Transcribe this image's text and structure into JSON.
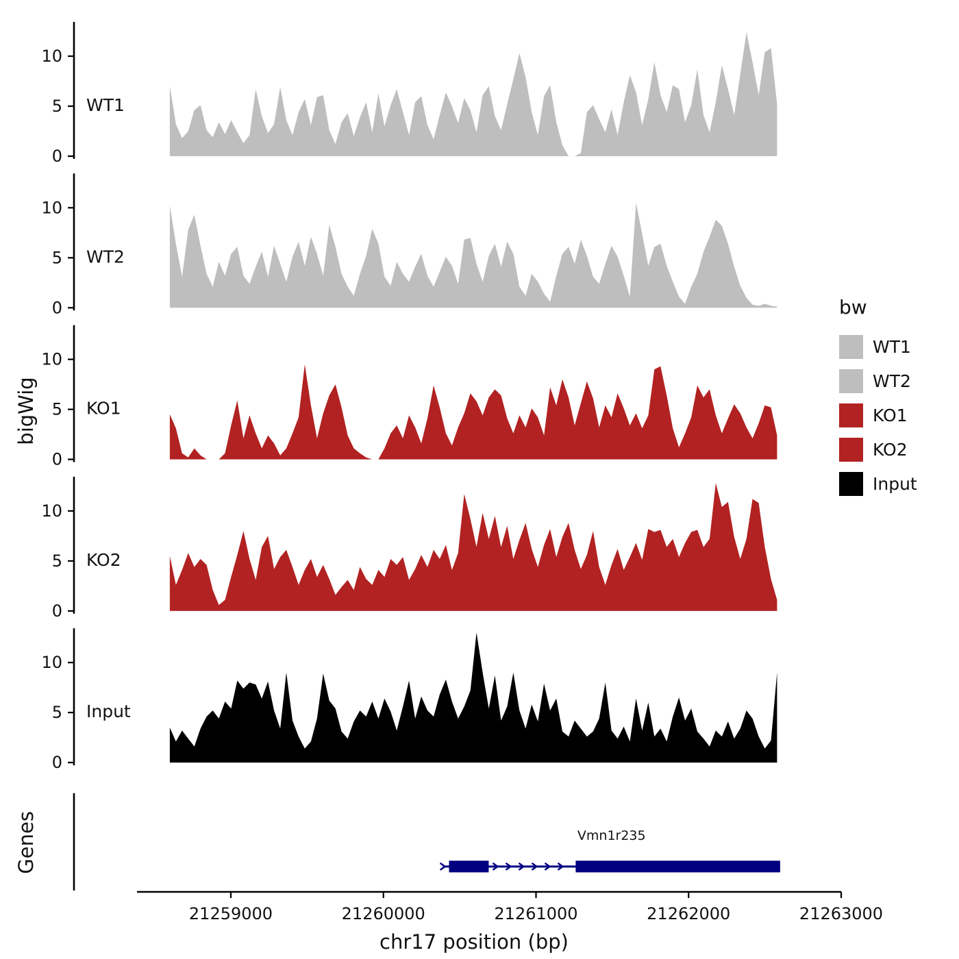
{
  "figure": {
    "y_axis_title": "bigWig",
    "genes_axis_title": "Genes",
    "x_axis_title": "chr17 position (bp)",
    "y_ticks": [
      0,
      5,
      10
    ],
    "x_ticks": [
      "21259000",
      "21260000",
      "21261000",
      "21262000",
      "21263000"
    ],
    "legend": {
      "title": "bw",
      "entries": [
        {
          "label": "WT1",
          "color": "#bebebe"
        },
        {
          "label": "WT2",
          "color": "#bebebe"
        },
        {
          "label": "KO1",
          "color": "#b22222"
        },
        {
          "label": "KO2",
          "color": "#b22222"
        },
        {
          "label": "Input",
          "color": "#000000"
        }
      ]
    }
  },
  "chart_data": {
    "type": "area",
    "title": "",
    "xlabel": "chr17 position (bp)",
    "ylabel": "bigWig",
    "x_axis_range": [
      21258385,
      21263000
    ],
    "x_ticks": [
      21259000,
      21260000,
      21261000,
      21262000,
      21263000
    ],
    "x_range": [
      21258600,
      21262580
    ],
    "ylim": [
      0,
      13.2
    ],
    "y_ticks": [
      0,
      5,
      10
    ],
    "grid": false,
    "legend_position": "right",
    "tracks": [
      {
        "name": "WT1",
        "color": "#bebebe",
        "values": [
          7.0,
          3.2,
          1.8,
          2.5,
          4.6,
          5.1,
          2.6,
          1.9,
          3.4,
          2.2,
          3.6,
          2.4,
          1.3,
          2.1,
          6.7,
          4.0,
          2.3,
          3.2,
          6.9,
          3.6,
          2.1,
          4.4,
          5.7,
          3.1,
          5.9,
          6.1,
          2.6,
          1.2,
          3.4,
          4.3,
          2.0,
          3.9,
          5.4,
          2.4,
          6.3,
          3.0,
          5.1,
          6.7,
          4.4,
          2.1,
          5.4,
          6.0,
          3.1,
          1.7,
          4.1,
          6.4,
          5.0,
          3.3,
          5.8,
          4.6,
          2.4,
          6.1,
          7.0,
          4.0,
          2.6,
          5.2,
          7.7,
          10.3,
          7.9,
          4.4,
          2.1,
          6.0,
          7.1,
          3.4,
          1.1,
          0.0,
          0.0,
          0.3,
          4.4,
          5.1,
          3.7,
          2.4,
          4.7,
          2.1,
          5.4,
          8.1,
          6.4,
          3.1,
          5.7,
          9.4,
          6.1,
          4.4,
          7.1,
          6.7,
          3.4,
          5.1,
          8.7,
          4.1,
          2.4,
          5.4,
          9.1,
          6.7,
          4.1,
          8.2,
          12.4,
          9.4,
          6.1,
          10.4,
          10.8,
          5.2
        ]
      },
      {
        "name": "WT2",
        "color": "#bebebe",
        "values": [
          10.2,
          6.4,
          3.1,
          7.8,
          9.3,
          6.2,
          3.4,
          2.1,
          4.6,
          3.2,
          5.4,
          6.1,
          3.2,
          2.4,
          4.1,
          5.6,
          3.1,
          6.2,
          4.4,
          2.6,
          5.1,
          6.6,
          4.2,
          7.1,
          5.4,
          3.2,
          8.3,
          6.1,
          3.4,
          2.1,
          1.2,
          3.4,
          5.2,
          7.9,
          6.4,
          3.1,
          2.2,
          4.6,
          3.4,
          2.6,
          4.1,
          5.4,
          3.2,
          2.1,
          3.6,
          5.1,
          4.2,
          2.4,
          6.8,
          7.0,
          4.4,
          2.6,
          5.2,
          6.4,
          4.1,
          6.6,
          5.4,
          2.1,
          1.2,
          3.4,
          2.6,
          1.4,
          0.6,
          3.2,
          5.4,
          6.1,
          4.4,
          6.8,
          5.2,
          3.1,
          2.4,
          4.4,
          6.2,
          5.1,
          3.2,
          1.1,
          10.5,
          7.4,
          4.2,
          6.1,
          6.4,
          4.2,
          2.6,
          1.1,
          0.4,
          2.1,
          3.4,
          5.6,
          7.1,
          8.8,
          8.2,
          6.4,
          4.1,
          2.2,
          1.0,
          0.3,
          0.2,
          0.4,
          0.2,
          0.1
        ]
      },
      {
        "name": "KO1",
        "color": "#b22222",
        "values": [
          4.5,
          3.1,
          0.6,
          0.2,
          1.1,
          0.4,
          0.0,
          0.0,
          0.0,
          0.6,
          3.4,
          5.9,
          2.1,
          4.4,
          2.6,
          1.1,
          2.4,
          1.6,
          0.4,
          1.1,
          2.6,
          4.2,
          9.5,
          5.4,
          2.1,
          4.6,
          6.4,
          7.5,
          5.2,
          2.4,
          1.1,
          0.6,
          0.2,
          0.0,
          0.0,
          1.1,
          2.6,
          3.4,
          2.1,
          4.4,
          3.2,
          1.6,
          4.1,
          7.4,
          5.2,
          2.6,
          1.4,
          3.2,
          4.6,
          6.6,
          5.8,
          4.4,
          6.2,
          7.0,
          6.4,
          4.1,
          2.6,
          4.4,
          3.2,
          5.1,
          4.2,
          2.4,
          7.2,
          5.4,
          8.0,
          6.2,
          3.4,
          5.6,
          7.8,
          6.1,
          3.2,
          5.4,
          4.2,
          6.6,
          5.1,
          3.4,
          4.6,
          3.1,
          4.4,
          9.0,
          9.3,
          6.4,
          3.1,
          1.2,
          2.6,
          4.2,
          7.4,
          6.2,
          7.0,
          4.4,
          2.6,
          4.1,
          5.5,
          4.6,
          3.2,
          2.1,
          3.6,
          5.4,
          5.2,
          2.4
        ]
      },
      {
        "name": "KO2",
        "color": "#b22222",
        "values": [
          5.5,
          2.6,
          4.1,
          5.8,
          4.4,
          5.2,
          4.6,
          2.1,
          0.6,
          1.1,
          3.4,
          5.6,
          8.0,
          5.2,
          3.1,
          6.4,
          7.5,
          4.2,
          5.4,
          6.1,
          4.4,
          2.6,
          4.1,
          5.2,
          3.4,
          4.6,
          3.2,
          1.6,
          2.4,
          3.1,
          2.1,
          4.4,
          3.2,
          2.6,
          4.1,
          3.4,
          5.2,
          4.6,
          5.4,
          3.1,
          4.2,
          5.6,
          4.4,
          6.1,
          5.2,
          6.6,
          4.1,
          5.8,
          11.7,
          9.2,
          6.4,
          9.8,
          7.2,
          9.5,
          6.4,
          8.5,
          5.2,
          7.1,
          8.8,
          6.2,
          4.4,
          6.6,
          8.2,
          5.4,
          7.4,
          8.8,
          6.1,
          4.2,
          5.6,
          8.0,
          4.4,
          2.6,
          4.6,
          6.2,
          4.1,
          5.4,
          6.8,
          5.1,
          8.2,
          7.9,
          8.1,
          6.4,
          7.2,
          5.4,
          6.8,
          7.9,
          8.1,
          6.4,
          7.2,
          12.8,
          10.4,
          10.9,
          7.4,
          5.2,
          7.2,
          11.2,
          10.8,
          6.4,
          3.2,
          1.1
        ]
      },
      {
        "name": "Input",
        "color": "#000000",
        "values": [
          3.5,
          2.1,
          3.2,
          2.4,
          1.6,
          3.4,
          4.6,
          5.2,
          4.4,
          6.1,
          5.4,
          8.2,
          7.4,
          8.0,
          7.8,
          6.4,
          8.1,
          5.2,
          3.4,
          9.0,
          4.2,
          2.6,
          1.4,
          2.1,
          4.4,
          8.9,
          6.2,
          5.4,
          3.1,
          2.4,
          4.1,
          5.2,
          4.6,
          6.1,
          4.4,
          6.4,
          5.1,
          3.2,
          5.6,
          8.2,
          4.4,
          6.6,
          5.2,
          4.6,
          6.8,
          8.3,
          6.1,
          4.4,
          5.6,
          7.2,
          13.0,
          9.0,
          5.4,
          8.7,
          4.2,
          5.6,
          9.0,
          5.2,
          3.4,
          5.8,
          4.1,
          7.9,
          5.2,
          6.4,
          3.1,
          2.6,
          4.2,
          3.4,
          2.6,
          3.1,
          4.4,
          8.0,
          3.2,
          2.4,
          3.6,
          2.1,
          6.4,
          3.2,
          6.0,
          2.6,
          3.4,
          2.1,
          4.6,
          6.5,
          4.2,
          5.4,
          3.1,
          2.4,
          1.6,
          3.2,
          2.6,
          4.1,
          2.4,
          3.4,
          5.2,
          4.4,
          2.6,
          1.4,
          2.2,
          9.0
        ]
      }
    ],
    "gene_track": {
      "genes": [
        {
          "name": "Vmn1r235",
          "strand": "+",
          "color": "#000080",
          "line": [
            21260390,
            21262600
          ],
          "exons": [
            [
              21260430,
              21260690
            ],
            [
              21261260,
              21262600
            ]
          ]
        }
      ]
    }
  }
}
